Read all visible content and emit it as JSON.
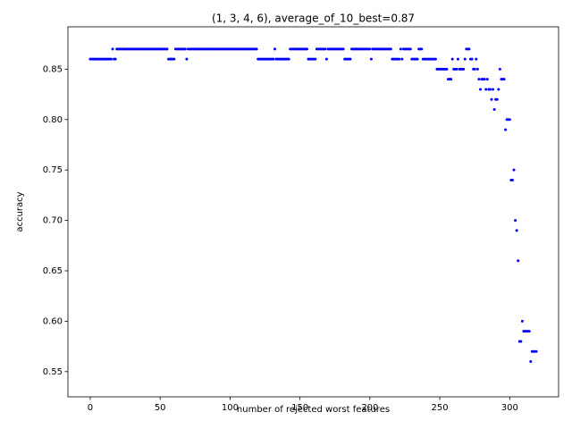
{
  "chart_data": {
    "type": "scatter",
    "title": "(1, 3, 4, 6), average_of_10_best=0.87",
    "x_label": "number of rejected worst features",
    "y_label": "accuracy",
    "color": "blue",
    "xlim": [
      -15.95,
      334.95
    ],
    "ylim": [
      0.525,
      0.892
    ],
    "xticks": [
      0,
      50,
      100,
      150,
      200,
      250,
      300
    ],
    "yticks": [
      0.55,
      {
        "value": 0.6,
        "label": "0.60"
      },
      0.65,
      {
        "value": 0.7,
        "label": "0.70"
      },
      0.75,
      {
        "value": 0.8,
        "label": "0.80"
      },
      0.85
    ],
    "x": [
      0,
      1,
      2,
      3,
      4,
      5,
      6,
      7,
      8,
      9,
      10,
      11,
      12,
      13,
      14,
      15,
      16,
      17,
      18,
      19,
      20,
      21,
      22,
      23,
      24,
      25,
      26,
      27,
      28,
      29,
      30,
      31,
      32,
      33,
      34,
      35,
      36,
      37,
      38,
      39,
      40,
      41,
      42,
      43,
      44,
      45,
      46,
      47,
      48,
      49,
      50,
      51,
      52,
      53,
      54,
      55,
      56,
      57,
      58,
      59,
      60,
      61,
      62,
      63,
      64,
      65,
      66,
      67,
      68,
      69,
      70,
      71,
      72,
      73,
      74,
      75,
      76,
      77,
      78,
      79,
      80,
      81,
      82,
      83,
      84,
      85,
      86,
      87,
      88,
      89,
      90,
      91,
      92,
      93,
      94,
      95,
      96,
      97,
      98,
      99,
      100,
      101,
      102,
      103,
      104,
      105,
      106,
      107,
      108,
      109,
      110,
      111,
      112,
      113,
      114,
      115,
      116,
      117,
      118,
      119,
      120,
      121,
      122,
      123,
      124,
      125,
      126,
      127,
      128,
      129,
      130,
      131,
      132,
      133,
      134,
      135,
      136,
      137,
      138,
      139,
      140,
      141,
      142,
      143,
      144,
      145,
      146,
      147,
      148,
      149,
      150,
      151,
      152,
      153,
      154,
      155,
      156,
      157,
      158,
      159,
      160,
      161,
      162,
      163,
      164,
      165,
      166,
      167,
      168,
      169,
      170,
      171,
      172,
      173,
      174,
      175,
      176,
      177,
      178,
      179,
      180,
      181,
      182,
      183,
      184,
      185,
      186,
      187,
      188,
      189,
      190,
      191,
      192,
      193,
      194,
      195,
      196,
      197,
      198,
      199,
      200,
      201,
      202,
      203,
      204,
      205,
      206,
      207,
      208,
      209,
      210,
      211,
      212,
      213,
      214,
      215,
      216,
      217,
      218,
      219,
      220,
      221,
      222,
      223,
      224,
      225,
      226,
      227,
      228,
      229,
      230,
      231,
      232,
      233,
      234,
      235,
      236,
      237,
      238,
      239,
      240,
      241,
      242,
      243,
      244,
      245,
      246,
      247,
      248,
      249,
      250,
      251,
      252,
      253,
      254,
      255,
      256,
      257,
      258,
      259,
      260,
      261,
      262,
      263,
      264,
      265,
      266,
      267,
      268,
      269,
      270,
      271,
      272,
      273,
      274,
      275,
      276,
      277,
      278,
      279,
      280,
      281,
      282,
      283,
      284,
      285,
      286,
      287,
      288,
      289,
      290,
      291,
      292,
      293,
      294,
      295,
      296,
      297,
      298,
      299,
      300,
      301,
      302,
      303,
      304,
      305,
      306,
      307,
      308,
      309,
      310,
      311,
      312,
      313,
      314,
      315,
      316,
      317,
      318,
      319
    ],
    "values": [
      0.86,
      0.86,
      0.86,
      0.86,
      0.86,
      0.86,
      0.86,
      0.86,
      0.86,
      0.86,
      0.86,
      0.86,
      0.86,
      0.86,
      0.86,
      0.86,
      0.87,
      0.86,
      0.86,
      0.87,
      0.87,
      0.87,
      0.87,
      0.87,
      0.87,
      0.87,
      0.87,
      0.87,
      0.87,
      0.87,
      0.87,
      0.87,
      0.87,
      0.87,
      0.87,
      0.87,
      0.87,
      0.87,
      0.87,
      0.87,
      0.87,
      0.87,
      0.87,
      0.87,
      0.87,
      0.87,
      0.87,
      0.87,
      0.87,
      0.87,
      0.87,
      0.87,
      0.87,
      0.87,
      0.87,
      0.87,
      0.86,
      0.86,
      0.86,
      0.86,
      0.86,
      0.87,
      0.87,
      0.87,
      0.87,
      0.87,
      0.87,
      0.87,
      0.87,
      0.86,
      0.87,
      0.87,
      0.87,
      0.87,
      0.87,
      0.87,
      0.87,
      0.87,
      0.87,
      0.87,
      0.87,
      0.87,
      0.87,
      0.87,
      0.87,
      0.87,
      0.87,
      0.87,
      0.87,
      0.87,
      0.87,
      0.87,
      0.87,
      0.87,
      0.87,
      0.87,
      0.87,
      0.87,
      0.87,
      0.87,
      0.87,
      0.87,
      0.87,
      0.87,
      0.87,
      0.87,
      0.87,
      0.87,
      0.87,
      0.87,
      0.87,
      0.87,
      0.87,
      0.87,
      0.87,
      0.87,
      0.87,
      0.87,
      0.87,
      0.87,
      0.86,
      0.86,
      0.86,
      0.86,
      0.86,
      0.86,
      0.86,
      0.86,
      0.86,
      0.86,
      0.86,
      0.86,
      0.87,
      0.86,
      0.86,
      0.86,
      0.86,
      0.86,
      0.86,
      0.86,
      0.86,
      0.86,
      0.86,
      0.87,
      0.87,
      0.87,
      0.87,
      0.87,
      0.87,
      0.87,
      0.87,
      0.87,
      0.87,
      0.87,
      0.87,
      0.87,
      0.86,
      0.86,
      0.86,
      0.86,
      0.86,
      0.86,
      0.87,
      0.87,
      0.87,
      0.87,
      0.87,
      0.87,
      0.87,
      0.86,
      0.87,
      0.87,
      0.87,
      0.87,
      0.87,
      0.87,
      0.87,
      0.87,
      0.87,
      0.87,
      0.87,
      0.87,
      0.86,
      0.86,
      0.86,
      0.86,
      0.86,
      0.87,
      0.87,
      0.87,
      0.87,
      0.87,
      0.87,
      0.87,
      0.87,
      0.87,
      0.87,
      0.87,
      0.87,
      0.87,
      0.87,
      0.86,
      0.87,
      0.87,
      0.87,
      0.87,
      0.87,
      0.87,
      0.87,
      0.87,
      0.87,
      0.87,
      0.87,
      0.87,
      0.87,
      0.87,
      0.86,
      0.86,
      0.86,
      0.86,
      0.86,
      0.86,
      0.87,
      0.86,
      0.87,
      0.87,
      0.87,
      0.87,
      0.87,
      0.87,
      0.86,
      0.86,
      0.86,
      0.86,
      0.86,
      0.87,
      0.87,
      0.87,
      0.86,
      0.86,
      0.86,
      0.86,
      0.86,
      0.86,
      0.86,
      0.86,
      0.86,
      0.86,
      0.85,
      0.85,
      0.85,
      0.85,
      0.85,
      0.85,
      0.85,
      0.85,
      0.84,
      0.84,
      0.84,
      0.86,
      0.85,
      0.85,
      0.85,
      0.86,
      0.85,
      0.85,
      0.85,
      0.85,
      0.86,
      0.87,
      0.87,
      0.87,
      0.86,
      0.86,
      0.85,
      0.85,
      0.86,
      0.85,
      0.84,
      0.83,
      0.84,
      0.84,
      0.84,
      0.83,
      0.84,
      0.83,
      0.83,
      0.82,
      0.83,
      0.81,
      0.82,
      0.82,
      0.83,
      0.85,
      0.84,
      0.84,
      0.84,
      0.79,
      0.8,
      0.8,
      0.8,
      0.74,
      0.74,
      0.75,
      0.7,
      0.69,
      0.66,
      0.58,
      0.58,
      0.6,
      0.59,
      0.59,
      0.59,
      0.59,
      0.59,
      0.56,
      0.57,
      0.57,
      0.57,
      0.57
    ]
  }
}
